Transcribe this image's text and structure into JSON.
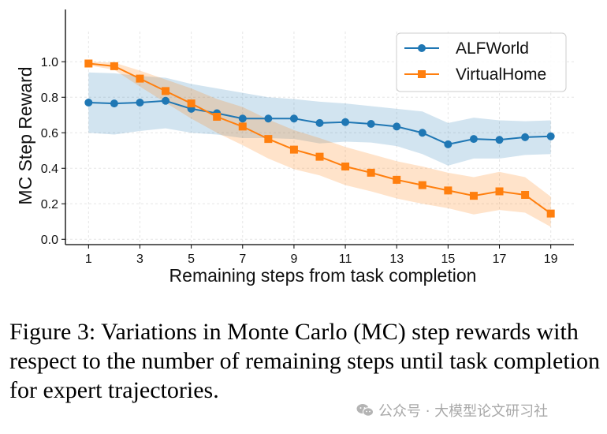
{
  "chart_data": {
    "type": "line",
    "x": [
      1,
      2,
      3,
      4,
      5,
      6,
      7,
      8,
      9,
      10,
      11,
      12,
      13,
      14,
      15,
      16,
      17,
      18,
      19
    ],
    "xticks": [
      1,
      3,
      5,
      7,
      9,
      11,
      13,
      15,
      17,
      19
    ],
    "xlim": [
      0.1,
      19.9
    ],
    "yticks": [
      0.0,
      0.2,
      0.4,
      0.6,
      0.8,
      1.0
    ],
    "ylim": [
      -0.03,
      1.17
    ],
    "xlabel": "Remaining steps from task completion",
    "ylabel": "MC Step Reward",
    "grid": true,
    "legend": "top-right",
    "series": [
      {
        "name": "ALFWorld",
        "color": "#1f77b4",
        "marker": "circle",
        "values": [
          0.77,
          0.765,
          0.77,
          0.78,
          0.735,
          0.71,
          0.68,
          0.68,
          0.68,
          0.655,
          0.66,
          0.65,
          0.635,
          0.6,
          0.535,
          0.565,
          0.56,
          0.575,
          0.58
        ],
        "upper": [
          0.94,
          0.935,
          0.92,
          0.91,
          0.875,
          0.85,
          0.825,
          0.8,
          0.79,
          0.775,
          0.765,
          0.75,
          0.735,
          0.72,
          0.655,
          0.685,
          0.67,
          0.665,
          0.67
        ],
        "lower": [
          0.6,
          0.59,
          0.61,
          0.625,
          0.6,
          0.59,
          0.57,
          0.57,
          0.565,
          0.54,
          0.55,
          0.545,
          0.525,
          0.48,
          0.415,
          0.455,
          0.455,
          0.475,
          0.48
        ]
      },
      {
        "name": "VirtualHome",
        "color": "#ff7f0e",
        "marker": "square",
        "values": [
          0.99,
          0.975,
          0.905,
          0.835,
          0.765,
          0.69,
          0.635,
          0.565,
          0.505,
          0.465,
          0.41,
          0.375,
          0.335,
          0.305,
          0.275,
          0.245,
          0.27,
          0.25,
          0.145
        ],
        "upper": [
          1.0,
          0.995,
          0.95,
          0.9,
          0.85,
          0.79,
          0.745,
          0.675,
          0.615,
          0.57,
          0.52,
          0.48,
          0.44,
          0.41,
          0.375,
          0.35,
          0.38,
          0.35,
          0.24
        ],
        "lower": [
          0.98,
          0.955,
          0.86,
          0.77,
          0.68,
          0.6,
          0.53,
          0.455,
          0.395,
          0.36,
          0.305,
          0.27,
          0.23,
          0.2,
          0.175,
          0.14,
          0.165,
          0.15,
          0.07
        ]
      }
    ]
  },
  "caption": "Figure 3: Variations in Monte Carlo (MC) step rewards with respect to the number of remaining steps until task completion for expert trajectories.",
  "watermark": {
    "text": "公众号 · 大模型论文研习社",
    "icon": "wechat-icon"
  }
}
